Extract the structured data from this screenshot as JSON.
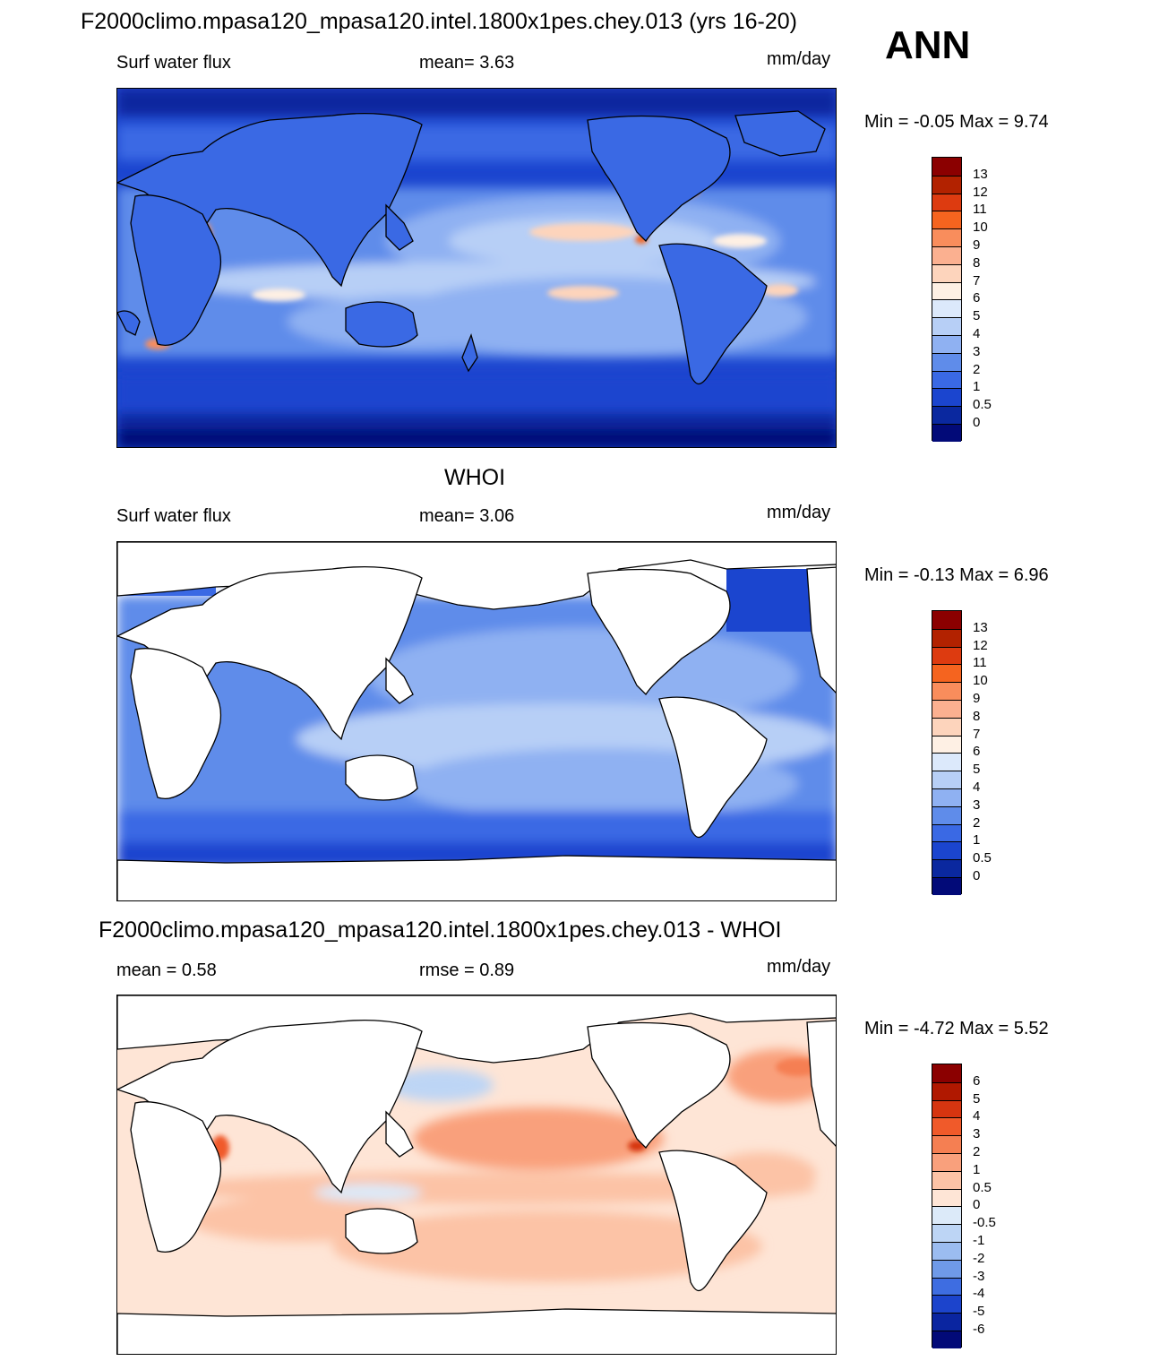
{
  "case_title": "F2000climo.mpasa120_mpasa120.intel.1800x1pes.chey.013 (yrs 16-20)",
  "season": "ANN",
  "panels": [
    {
      "id": "model",
      "title": "",
      "left_label": "Surf water flux",
      "mid_label": "mean=   3.63",
      "units": "mm/day",
      "minmax": "Min =  -0.05 Max =   9.74",
      "colorbar_labels": [
        "13",
        "12",
        "11",
        "10",
        "9",
        "8",
        "7",
        "6",
        "5",
        "4",
        "3",
        "2",
        "1",
        "0.5",
        "0"
      ],
      "colorbar_colors": [
        "#8b0000",
        "#b22200",
        "#dd3b10",
        "#f5641f",
        "#f98d5c",
        "#fbb090",
        "#fdd4bc",
        "#fef0e4",
        "#dce9fb",
        "#b7cff6",
        "#8fb1f2",
        "#5f8cea",
        "#3a69e4",
        "#1b45cf",
        "#0a289f",
        "#020a78"
      ]
    },
    {
      "id": "obs",
      "title": "WHOI",
      "left_label": "Surf water flux",
      "mid_label": "mean=   3.06",
      "units": "mm/day",
      "minmax": "Min =  -0.13 Max =   6.96",
      "colorbar_labels": [
        "13",
        "12",
        "11",
        "10",
        "9",
        "8",
        "7",
        "6",
        "5",
        "4",
        "3",
        "2",
        "1",
        "0.5",
        "0"
      ],
      "colorbar_colors": [
        "#8b0000",
        "#b22200",
        "#dd3b10",
        "#f5641f",
        "#f98d5c",
        "#fbb090",
        "#fdd4bc",
        "#fef0e4",
        "#dce9fb",
        "#b7cff6",
        "#8fb1f2",
        "#5f8cea",
        "#3a69e4",
        "#1b45cf",
        "#0a289f",
        "#020a78"
      ]
    },
    {
      "id": "diff",
      "title": "F2000climo.mpasa120_mpasa120.intel.1800x1pes.chey.013 - WHOI",
      "left_label": "mean =   0.58",
      "mid_label": "rmse =   0.89",
      "units": "mm/day",
      "minmax": "Min =  -4.72 Max =   5.52",
      "colorbar_labels": [
        "6",
        "5",
        "4",
        "3",
        "2",
        "1",
        "0.5",
        "0",
        "-0.5",
        "-1",
        "-2",
        "-3",
        "-4",
        "-5",
        "-6"
      ],
      "colorbar_colors": [
        "#8b0000",
        "#b01800",
        "#d63510",
        "#f05a2a",
        "#f57f52",
        "#f9a07c",
        "#fcc3a6",
        "#fee5d6",
        "#dceaf9",
        "#bdd5f5",
        "#9bbcf0",
        "#6f9ae8",
        "#3e6de1",
        "#1c44cc",
        "#0a25a0",
        "#020a78"
      ]
    }
  ]
}
